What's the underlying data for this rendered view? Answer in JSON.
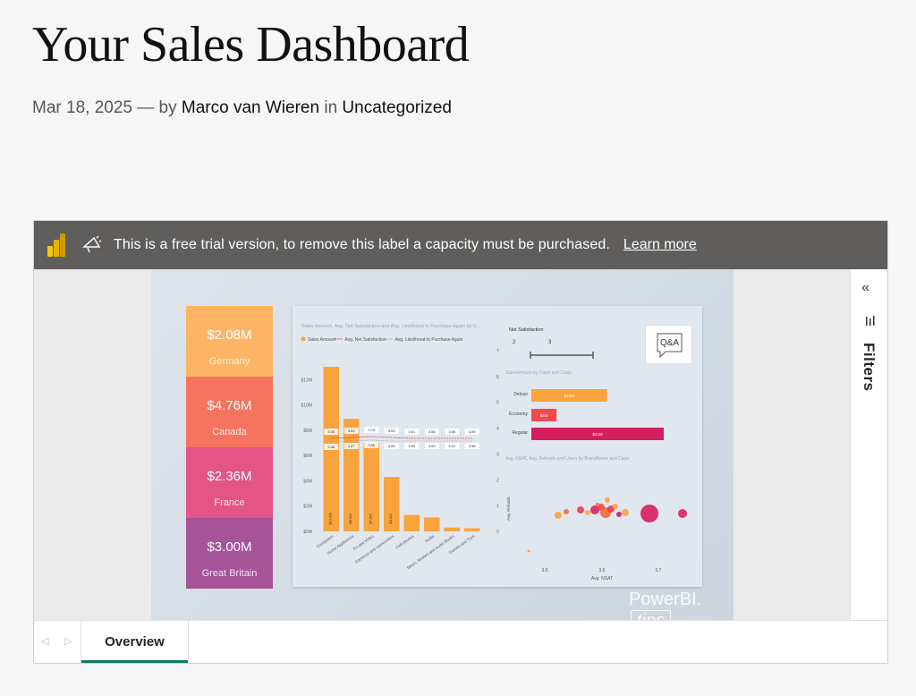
{
  "post": {
    "title": "Your Sales Dashboard",
    "date": "Mar 18, 2025",
    "by": "— by",
    "author": "Marco van Wieren",
    "in": "in",
    "category": "Uncategorized"
  },
  "trial": {
    "message": "This is a free trial version, to remove this label a capacity must be purchased.",
    "learn_more": "Learn more"
  },
  "filters": {
    "label": "Filters",
    "collapse": "«"
  },
  "tabs": [
    {
      "label": "Overview"
    }
  ],
  "report": {
    "kpis": [
      {
        "value": "$2.08M",
        "label": "Germany",
        "color": "#fdb565"
      },
      {
        "value": "$4.76M",
        "label": "Canada",
        "color": "#f4745f"
      },
      {
        "value": "$2.36M",
        "label": "France",
        "color": "#e25584"
      },
      {
        "value": "$3.00M",
        "label": "Great Britain",
        "color": "#a6539a"
      }
    ],
    "qa": "Q&A",
    "watermark_main": "PowerBI.",
    "watermark_tips": "tips"
  },
  "chart_data": [
    {
      "type": "bar",
      "title": "Sales Amount, Avg. Net Satisfaction and Avg. Likelihood to Purchase Again by C...",
      "legend": [
        "Sales Amount",
        "Avg. Net Satisfaction",
        "Avg. Likelihood to Purchase Again"
      ],
      "categories": [
        "Computers",
        "Home Appliances",
        "TV and Video",
        "Cameras and camcorders",
        "Cell phones",
        "Audio",
        "Music, Movies and Audio Books",
        "Games and Toys"
      ],
      "y_ticks": [
        "$0M",
        "$2M",
        "$4M",
        "$6M",
        "$8M",
        "$10M",
        "$12M"
      ],
      "y2_ticks": [
        "0",
        "1",
        "2",
        "3",
        "4",
        "5",
        "6",
        "7"
      ],
      "ylim": [
        0,
        14
      ],
      "values": [
        13,
        8.9,
        7.0,
        4.3,
        1.3,
        1.1,
        0.3,
        0.25
      ],
      "bar_labels": [
        "$13.0M",
        "$8.9M",
        "$7.0M",
        "$4.3M",
        "",
        "",
        "",
        ""
      ],
      "net_sat_labels": [
        "3.55",
        "3.65",
        "3.75",
        "3.63",
        "3.61",
        "3.56",
        "3.66",
        "3.59"
      ],
      "likelihood_labels": [
        "3.48",
        "3.57",
        "3.56",
        "3.59",
        "3.59",
        "3.59",
        "3.57",
        "3.58"
      ],
      "color": "#f8a33c"
    },
    {
      "type": "slicer",
      "title": "Net Satisfaction",
      "range": [
        "2",
        "3"
      ]
    },
    {
      "type": "bar",
      "orientation": "horizontal",
      "title": "SalesAmount by Class and Class",
      "categories": [
        "Deluxe",
        "Economy",
        "Regular"
      ],
      "values": [
        12,
        4,
        21
      ],
      "bar_labels": [
        "$12M",
        "$4M",
        "$21M"
      ],
      "colors": [
        "#f8a33c",
        "#f04a4a",
        "#d61e5e"
      ]
    },
    {
      "type": "scatter",
      "title": "Avg. NSAT, Avg. Refunds and Users by BrandName and Class",
      "xlabel": "Avg. NSAT",
      "ylabel": "Avg. Refunds",
      "x_ticks": [
        "3.5",
        "3.6",
        "3.7"
      ]
    }
  ]
}
